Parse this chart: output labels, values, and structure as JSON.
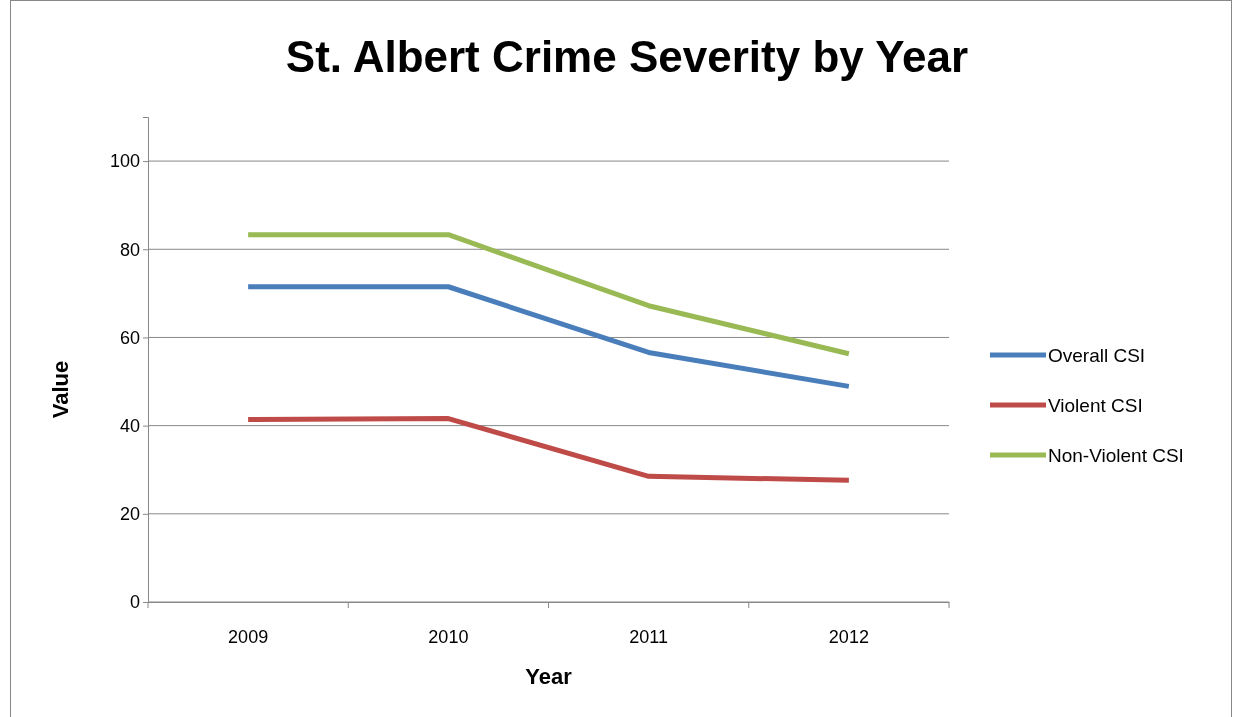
{
  "chart_data": {
    "type": "line",
    "title": "St. Albert Crime Severity by Year",
    "xlabel": "Year",
    "ylabel": "Value",
    "categories": [
      "2009",
      "2010",
      "2011",
      "2012"
    ],
    "series": [
      {
        "name": "Overall CSI",
        "color": "#4a7ebb",
        "values": [
          71.5,
          71.5,
          56.6,
          48.9
        ]
      },
      {
        "name": "Violent CSI",
        "color": "#be4b48",
        "values": [
          41.4,
          41.6,
          28.5,
          27.6
        ]
      },
      {
        "name": "Non-Violent CSI",
        "color": "#98b954",
        "values": [
          83.3,
          83.3,
          67.2,
          56.3
        ]
      }
    ],
    "ylim": [
      0,
      110
    ],
    "yticks": [
      0,
      20,
      40,
      60,
      80,
      100
    ],
    "grid": "y",
    "legend": "right",
    "marker": "none",
    "line_style": "solid"
  }
}
